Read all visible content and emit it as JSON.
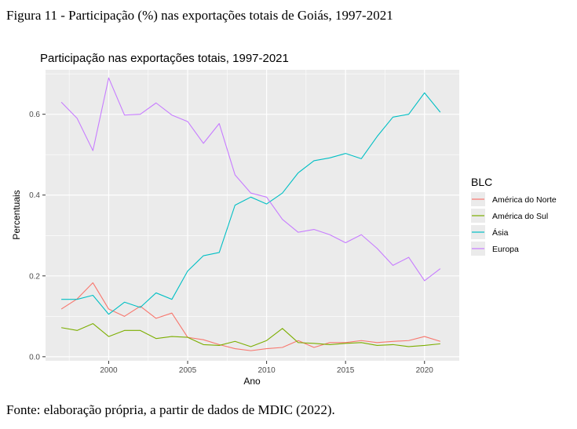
{
  "figure_caption": "Figura 11 - Participação (%) nas exportações totais de Goiás, 1997-2021",
  "source_note": "Fonte: elaboração própria, a partir de dados de MDIC (2022).",
  "colors": {
    "panel_bg": "#EBEBEB",
    "grid": "#FFFFFF",
    "America do Norte": "#F8766D",
    "America do Sul": "#7CAE00",
    "Asia": "#00BFC4",
    "Europa": "#C77CFF"
  },
  "chart_data": {
    "type": "line",
    "title": "Participação nas exportações totais, 1997-2021",
    "xlabel": "Ano",
    "ylabel": "Percentuais",
    "xlim": [
      1996,
      2022.2
    ],
    "ylim": [
      -0.01,
      0.71
    ],
    "x_ticks": [
      2000,
      2005,
      2010,
      2015,
      2020
    ],
    "x_tick_labels": [
      "2000",
      "2005",
      "2010",
      "2015",
      "2020"
    ],
    "y_ticks": [
      0.0,
      0.2,
      0.4,
      0.6
    ],
    "y_tick_labels": [
      "0.0",
      "0.2",
      "0.4",
      "0.6"
    ],
    "grid": true,
    "legend": {
      "title": "BLC",
      "position": "right"
    },
    "x": [
      1997,
      1998,
      1999,
      2000,
      2001,
      2002,
      2003,
      2004,
      2005,
      2006,
      2007,
      2008,
      2009,
      2010,
      2011,
      2012,
      2013,
      2014,
      2015,
      2016,
      2017,
      2018,
      2019,
      2020,
      2021
    ],
    "series": [
      {
        "name": "América do Norte",
        "color_key": "America do Norte",
        "values": [
          0.118,
          0.143,
          0.183,
          0.118,
          0.1,
          0.125,
          0.095,
          0.108,
          0.048,
          0.042,
          0.03,
          0.02,
          0.015,
          0.02,
          0.023,
          0.04,
          0.023,
          0.035,
          0.035,
          0.04,
          0.035,
          0.038,
          0.04,
          0.05,
          0.038
        ]
      },
      {
        "name": "América do Sul",
        "color_key": "America do Sul",
        "values": [
          0.072,
          0.065,
          0.082,
          0.05,
          0.065,
          0.065,
          0.045,
          0.05,
          0.048,
          0.03,
          0.028,
          0.038,
          0.025,
          0.04,
          0.07,
          0.035,
          0.033,
          0.03,
          0.033,
          0.035,
          0.028,
          0.03,
          0.025,
          0.028,
          0.032
        ]
      },
      {
        "name": "Ásia",
        "color_key": "Asia",
        "values": [
          0.142,
          0.142,
          0.152,
          0.105,
          0.135,
          0.122,
          0.158,
          0.142,
          0.212,
          0.25,
          0.258,
          0.375,
          0.395,
          0.378,
          0.405,
          0.455,
          0.485,
          0.492,
          0.503,
          0.49,
          0.545,
          0.593,
          0.6,
          0.653,
          0.605
        ]
      },
      {
        "name": "Europa",
        "color_key": "Europa",
        "values": [
          0.63,
          0.59,
          0.51,
          0.69,
          0.598,
          0.6,
          0.628,
          0.598,
          0.582,
          0.528,
          0.577,
          0.45,
          0.405,
          0.395,
          0.34,
          0.308,
          0.315,
          0.302,
          0.282,
          0.302,
          0.268,
          0.226,
          0.246,
          0.188,
          0.218
        ]
      }
    ]
  }
}
